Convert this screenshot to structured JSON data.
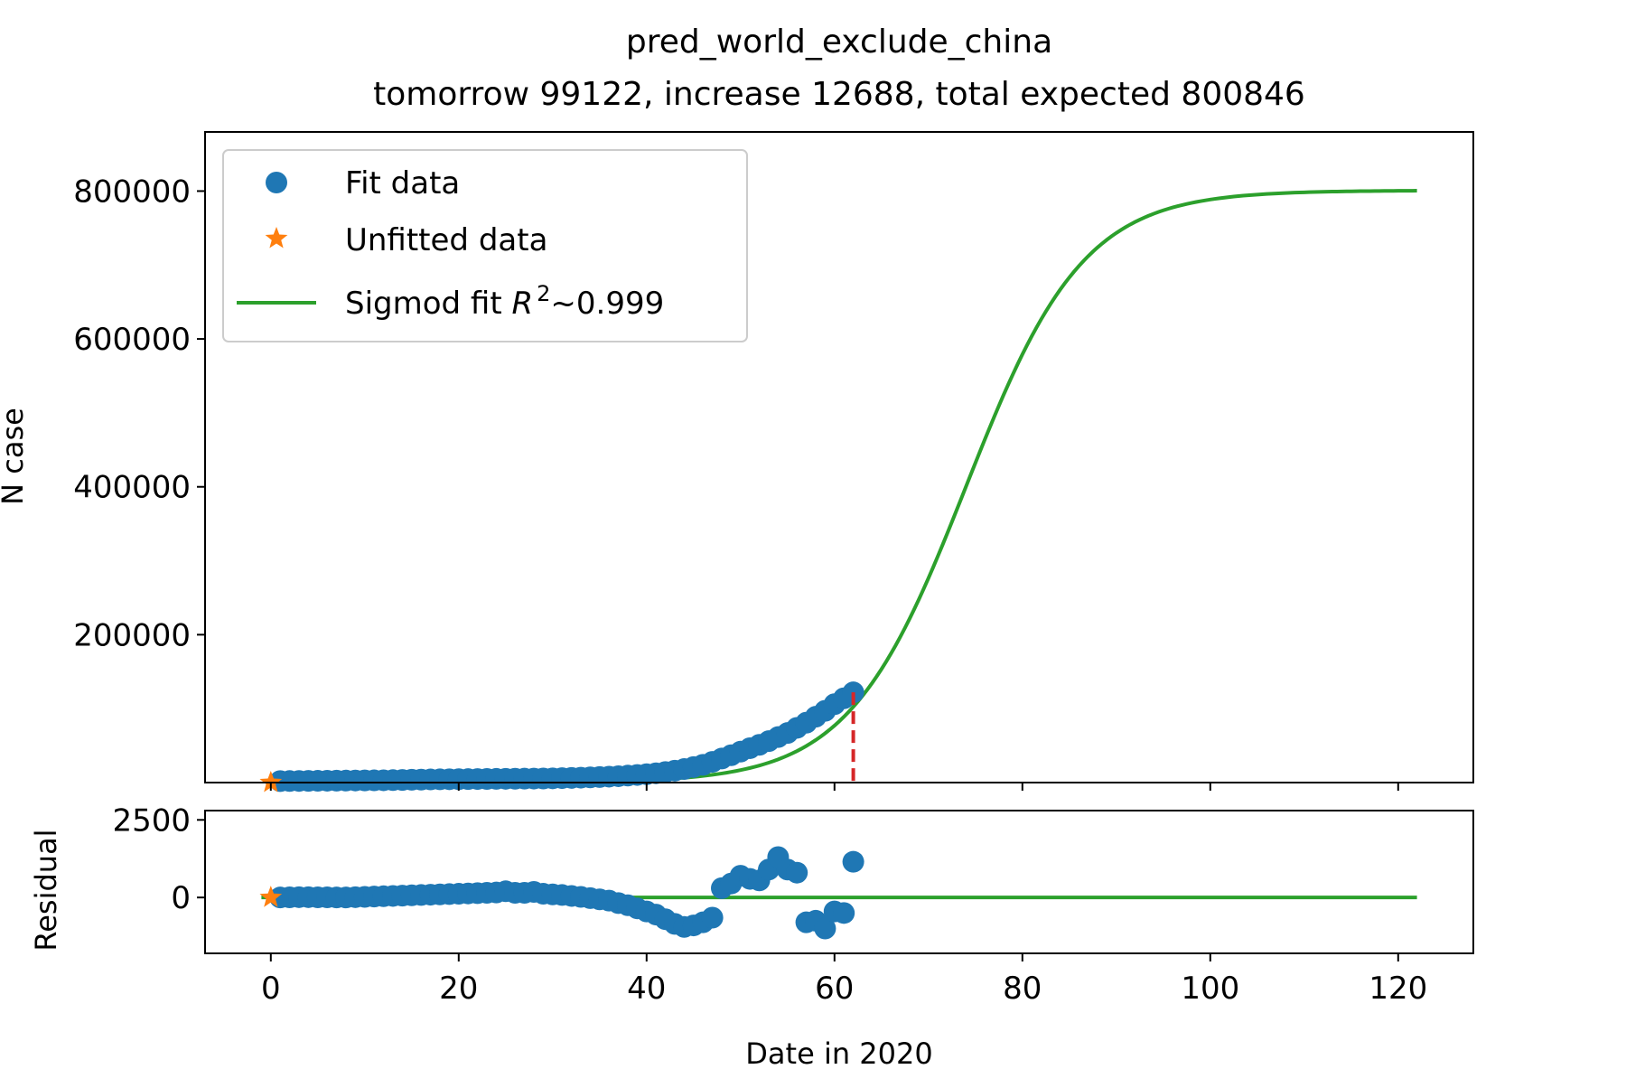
{
  "chart_data": {
    "type": "line",
    "title": "pred_world_exclude_china",
    "subtitle": "tomorrow 99122, increase 12688, total expected 800846",
    "xlabel": "Date in 2020",
    "xlim": [
      -7,
      128
    ],
    "xticks": [
      0,
      20,
      40,
      60,
      80,
      100,
      120
    ],
    "main": {
      "ylabel": "N case",
      "ylim": [
        0,
        880000
      ],
      "yticks": [
        200000,
        400000,
        600000,
        800000
      ],
      "legend": {
        "placement": "upper-left",
        "entries": [
          {
            "label": "Fit data",
            "marker": "circle",
            "color": "#1f77b4"
          },
          {
            "label": "Unfitted data",
            "marker": "star",
            "color": "#ff7f0e"
          },
          {
            "label_plain": "Sigmod fit ",
            "label_math_var": "R",
            "label_math_sup": "2",
            "label_suffix": "~0.999",
            "marker": "line",
            "color": "#2ca02c"
          }
        ]
      },
      "fit_points": {
        "x": [
          1,
          2,
          3,
          4,
          5,
          6,
          7,
          8,
          9,
          10,
          11,
          12,
          13,
          14,
          15,
          16,
          17,
          18,
          19,
          20,
          21,
          22,
          23,
          24,
          25,
          26,
          27,
          28,
          29,
          30,
          31,
          32,
          33,
          34,
          35,
          36,
          37,
          38,
          39,
          40,
          41,
          42,
          43,
          44,
          45,
          46,
          47,
          48,
          49,
          50,
          51,
          52,
          53,
          54,
          55,
          56,
          57,
          58,
          59,
          60,
          61,
          62
        ],
        "y": [
          2000,
          2100,
          2200,
          2300,
          2400,
          2500,
          2600,
          2700,
          2800,
          2900,
          3000,
          3100,
          3300,
          3500,
          3800,
          4000,
          4200,
          4400,
          4500,
          4600,
          4700,
          4800,
          4900,
          5000,
          5100,
          5200,
          5300,
          5400,
          5500,
          5700,
          6000,
          6300,
          6600,
          7000,
          7500,
          8000,
          8600,
          9400,
          10300,
          11300,
          12600,
          14200,
          16100,
          18300,
          21000,
          24000,
          28000,
          32500,
          37000,
          41800,
          46500,
          51000,
          56000,
          61500,
          67000,
          74000,
          81000,
          89000,
          97000,
          106000,
          114000,
          122000
        ]
      },
      "unfitted_points": {
        "x": [
          0
        ],
        "y": [
          0
        ]
      },
      "fit_curve": {
        "L": 800846,
        "k": 0.16,
        "x0": 74,
        "x_start": 0,
        "x_end": 122
      },
      "fit_start_marker": {
        "x": 62,
        "color": "#d62728",
        "style": "dashed"
      }
    },
    "residual": {
      "ylabel": "Residual",
      "ylim": [
        -1800,
        2800
      ],
      "yticks": [
        0,
        2500
      ],
      "fit_points": {
        "x": [
          1,
          2,
          3,
          4,
          5,
          6,
          7,
          8,
          9,
          10,
          11,
          12,
          13,
          14,
          15,
          16,
          17,
          18,
          19,
          20,
          21,
          22,
          23,
          24,
          25,
          26,
          27,
          28,
          29,
          30,
          31,
          32,
          33,
          34,
          35,
          36,
          37,
          38,
          39,
          40,
          41,
          42,
          43,
          44,
          45,
          46,
          47,
          48,
          49,
          50,
          51,
          52,
          53,
          54,
          55,
          56,
          57,
          58,
          59,
          60,
          61,
          62
        ],
        "y": [
          0,
          5,
          10,
          10,
          5,
          5,
          0,
          0,
          10,
          20,
          30,
          40,
          50,
          60,
          70,
          80,
          90,
          100,
          110,
          120,
          130,
          140,
          150,
          160,
          200,
          150,
          150,
          180,
          120,
          100,
          80,
          50,
          20,
          -20,
          -60,
          -100,
          -180,
          -250,
          -350,
          -450,
          -550,
          -700,
          -850,
          -950,
          -900,
          -800,
          -650,
          300,
          450,
          700,
          600,
          550,
          900,
          1300,
          900,
          800,
          -800,
          -750,
          -1000,
          -450,
          -500,
          1150
        ]
      },
      "unfitted_points": {
        "x": [
          0
        ],
        "y": [
          0
        ]
      },
      "zero_line": {
        "x_start": -1,
        "x_end": 122,
        "color": "#2ca02c"
      }
    }
  }
}
